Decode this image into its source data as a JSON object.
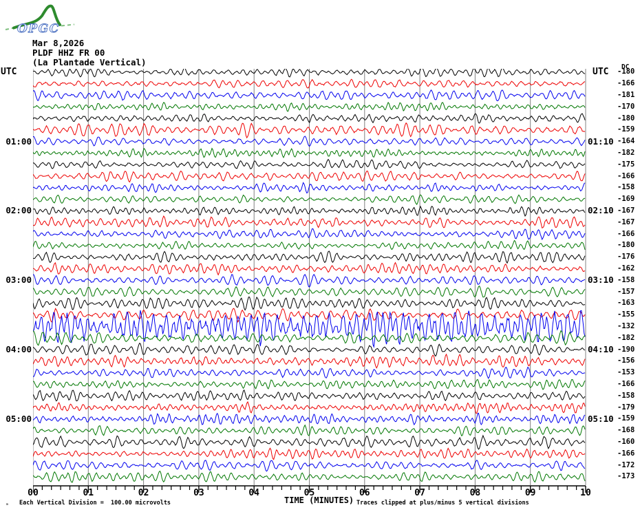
{
  "header": {
    "logo": "OPGC",
    "date": "Mar 8,2026",
    "station_code": "PLDF HHZ FR 00",
    "station_name": "(La Plantade Vertical)"
  },
  "axis": {
    "utc_left": "UTC",
    "utc_right": "UTC",
    "dc_header": "DC",
    "x_title": "TIME (MINUTES)",
    "x_ticks": [
      "00",
      "01",
      "02",
      "03",
      "04",
      "05",
      "06",
      "07",
      "08",
      "09",
      "10"
    ]
  },
  "footer": {
    "mark": "ₘ",
    "scale_note": "Each Vertical Division =  100.00 microvolts",
    "clip_note": "Traces clipped at plus/minus 5 vertical divisions"
  },
  "chart_data": {
    "type": "line",
    "subtype": "helicorder-seismogram",
    "title": "PLDF HHZ FR 00 (La Plantade Vertical) Mar 8,2026",
    "x_label": "TIME (MINUTES)",
    "x_range_minutes": [
      0,
      10
    ],
    "minutes_per_row": 10,
    "minor_ticks_per_minute": 6,
    "grid": true,
    "grid_color": "#808080",
    "axis_color": "#000000",
    "trace_colors": {
      "black": "#000000",
      "red": "#ee0000",
      "blue": "#0000ee",
      "green": "#007700"
    },
    "rows": [
      {
        "start": "00:00",
        "color": "black",
        "dc": -180,
        "amp": 4.5
      },
      {
        "start": "00:10",
        "color": "red",
        "dc": -166,
        "amp": 5.5
      },
      {
        "start": "00:20",
        "color": "blue",
        "dc": -181,
        "amp": 5
      },
      {
        "start": "00:30",
        "color": "green",
        "dc": -170,
        "amp": 4
      },
      {
        "start": "00:40",
        "color": "black",
        "dc": -180,
        "amp": 5
      },
      {
        "start": "00:50",
        "color": "red",
        "dc": -159,
        "amp": 6.5
      },
      {
        "start": "01:00",
        "color": "blue",
        "dc": -164,
        "amp": 5,
        "left_label": "01:00",
        "right_label": "01:10"
      },
      {
        "start": "01:10",
        "color": "green",
        "dc": -182,
        "amp": 4.5
      },
      {
        "start": "01:20",
        "color": "black",
        "dc": -175,
        "amp": 4.5
      },
      {
        "start": "01:30",
        "color": "red",
        "dc": -166,
        "amp": 5.5
      },
      {
        "start": "01:40",
        "color": "blue",
        "dc": -158,
        "amp": 5
      },
      {
        "start": "01:50",
        "color": "green",
        "dc": -169,
        "amp": 4.5
      },
      {
        "start": "02:00",
        "color": "black",
        "dc": -167,
        "amp": 4.5,
        "left_label": "02:00",
        "right_label": "02:10"
      },
      {
        "start": "02:10",
        "color": "red",
        "dc": -167,
        "amp": 5.5
      },
      {
        "start": "02:20",
        "color": "blue",
        "dc": -166,
        "amp": 5
      },
      {
        "start": "02:30",
        "color": "green",
        "dc": -180,
        "amp": 4.5
      },
      {
        "start": "02:40",
        "color": "black",
        "dc": -176,
        "amp": 5.5
      },
      {
        "start": "02:50",
        "color": "red",
        "dc": -162,
        "amp": 5.5
      },
      {
        "start": "03:00",
        "color": "blue",
        "dc": -158,
        "amp": 5.5,
        "left_label": "03:00",
        "right_label": "03:10"
      },
      {
        "start": "03:10",
        "color": "green",
        "dc": -157,
        "amp": 5
      },
      {
        "start": "03:20",
        "color": "black",
        "dc": -163,
        "amp": 6
      },
      {
        "start": "03:30",
        "color": "red",
        "dc": -155,
        "amp": 6
      },
      {
        "start": "03:40",
        "color": "blue",
        "dc": -132,
        "amp": 14
      },
      {
        "start": "03:50",
        "color": "green",
        "dc": -182,
        "amp": 7
      },
      {
        "start": "04:00",
        "color": "black",
        "dc": -190,
        "amp": 5.5,
        "left_label": "04:00",
        "right_label": "04:10"
      },
      {
        "start": "04:10",
        "color": "red",
        "dc": -156,
        "amp": 6
      },
      {
        "start": "04:20",
        "color": "blue",
        "dc": -153,
        "amp": 5
      },
      {
        "start": "04:30",
        "color": "green",
        "dc": -166,
        "amp": 4.5
      },
      {
        "start": "04:40",
        "color": "black",
        "dc": -158,
        "amp": 5
      },
      {
        "start": "04:50",
        "color": "red",
        "dc": -179,
        "amp": 5
      },
      {
        "start": "05:00",
        "color": "blue",
        "dc": -159,
        "amp": 5.5,
        "left_label": "05:00",
        "right_label": "05:10"
      },
      {
        "start": "05:10",
        "color": "green",
        "dc": -168,
        "amp": 5
      },
      {
        "start": "05:20",
        "color": "black",
        "dc": -160,
        "amp": 6
      },
      {
        "start": "05:30",
        "color": "red",
        "dc": -166,
        "amp": 5
      },
      {
        "start": "05:40",
        "color": "blue",
        "dc": -172,
        "amp": 5.5
      },
      {
        "start": "05:50",
        "color": "green",
        "dc": -173,
        "amp": 5
      }
    ]
  }
}
